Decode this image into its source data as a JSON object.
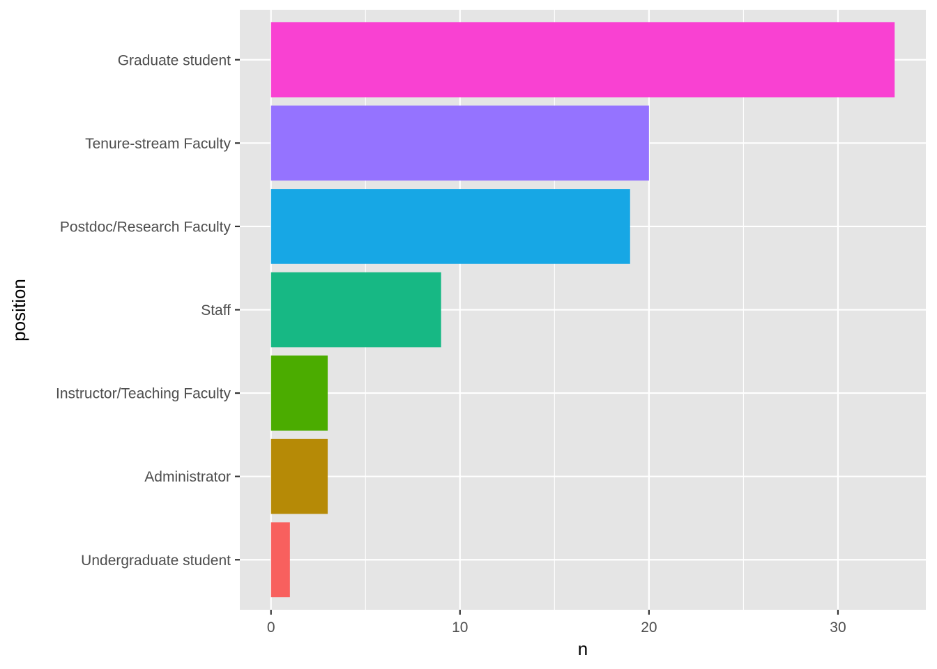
{
  "chart_data": {
    "type": "bar",
    "orientation": "horizontal",
    "categories": [
      "Undergraduate student",
      "Administrator",
      "Instructor/Teaching Faculty",
      "Staff",
      "Postdoc/Research Faculty",
      "Tenure-stream Faculty",
      "Graduate student"
    ],
    "values": [
      1,
      3,
      3,
      9,
      19,
      20,
      33
    ],
    "colors": [
      "#F8605E",
      "#B68A06",
      "#4BAC00",
      "#17B884",
      "#17A7E5",
      "#9573FF",
      "#F941D2"
    ],
    "xlabel": "n",
    "ylabel": "position",
    "xlim": [
      -1.65,
      34.65
    ],
    "x_ticks": [
      0,
      10,
      20,
      30
    ],
    "x_minor_ticks": [
      5,
      15,
      25
    ],
    "grid": true,
    "panel_background": "#E5E5E5",
    "grid_color": "#FFFFFF",
    "legend": "none"
  }
}
